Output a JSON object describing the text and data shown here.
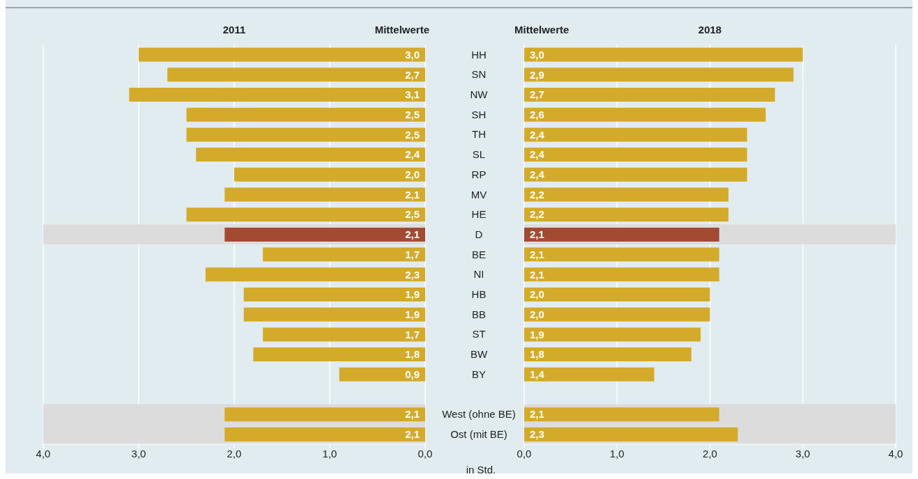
{
  "chart_data": [
    {
      "type": "bar",
      "orientation": "horizontal",
      "title": "2011",
      "xlabel": "in Std.",
      "annotations": [
        "Mittelwerte"
      ],
      "categories": [
        "HH",
        "SN",
        "NW",
        "SH",
        "TH",
        "SL",
        "RP",
        "MV",
        "HE",
        "D",
        "BE",
        "NI",
        "HB",
        "BB",
        "ST",
        "BW",
        "BY",
        null,
        "West (ohne BE)",
        "Ost (mit BE)"
      ],
      "values": [
        3.0,
        2.7,
        3.1,
        2.5,
        2.5,
        2.4,
        2.0,
        2.1,
        2.5,
        2.1,
        1.7,
        2.3,
        1.9,
        1.9,
        1.7,
        1.8,
        0.9,
        null,
        2.1,
        2.1
      ],
      "value_labels": [
        "3,0",
        "2,7",
        "3,1",
        "2,5",
        "2,5",
        "2,4",
        "2,0",
        "2,1",
        "2,5",
        "2,1",
        "1,7",
        "2,3",
        "1,9",
        "1,9",
        "1,7",
        "1,8",
        "0,9",
        null,
        "2,1",
        "2,1"
      ],
      "colors": [
        "#d3aa2a",
        "#d3aa2a",
        "#d3aa2a",
        "#d3aa2a",
        "#d3aa2a",
        "#d3aa2a",
        "#d3aa2a",
        "#d3aa2a",
        "#d3aa2a",
        "#a34a33",
        "#d3aa2a",
        "#d3aa2a",
        "#d3aa2a",
        "#d3aa2a",
        "#d3aa2a",
        "#d3aa2a",
        "#d3aa2a",
        "#d3aa2a",
        "#d3aa2a",
        "#d3aa2a"
      ],
      "xlim": [
        4,
        0
      ],
      "xticks": [
        {
          "value": 4,
          "label": "4,0"
        },
        {
          "value": 3,
          "label": "3,0"
        },
        {
          "value": 2,
          "label": "2,0"
        },
        {
          "value": 1,
          "label": "1,0"
        },
        {
          "value": 0,
          "label": "0,0"
        }
      ],
      "grid": "x",
      "legend": false,
      "tick_labels": "x",
      "bands": [
        {
          "axis": "y",
          "from": "D",
          "to": "D",
          "color": "#dcdcdc"
        },
        {
          "axis": "y",
          "from": "West (ohne BE)",
          "to": "Ost (mit BE)",
          "color": "#dcdcdc"
        }
      ]
    },
    {
      "type": "bar",
      "orientation": "horizontal",
      "title": "2018",
      "annotations": [
        "Mittelwerte"
      ],
      "categories": [
        "HH",
        "SN",
        "NW",
        "SH",
        "TH",
        "SL",
        "RP",
        "MV",
        "HE",
        "D",
        "BE",
        "NI",
        "HB",
        "BB",
        "ST",
        "BW",
        "BY",
        null,
        "West (ohne BE)",
        "Ost (mit BE)"
      ],
      "values": [
        3.0,
        2.9,
        2.7,
        2.6,
        2.4,
        2.4,
        2.4,
        2.2,
        2.2,
        2.1,
        2.1,
        2.1,
        2.0,
        2.0,
        1.9,
        1.8,
        1.4,
        null,
        2.1,
        2.3
      ],
      "value_labels": [
        "3,0",
        "2,9",
        "2,7",
        "2,6",
        "2,4",
        "2,4",
        "2,4",
        "2,2",
        "2,2",
        "2,1",
        "2,1",
        "2,1",
        "2,0",
        "2,0",
        "1,9",
        "1,8",
        "1,4",
        null,
        "2,1",
        "2,3"
      ],
      "colors": [
        "#d3aa2a",
        "#d3aa2a",
        "#d3aa2a",
        "#d3aa2a",
        "#d3aa2a",
        "#d3aa2a",
        "#d3aa2a",
        "#d3aa2a",
        "#d3aa2a",
        "#a34a33",
        "#d3aa2a",
        "#d3aa2a",
        "#d3aa2a",
        "#d3aa2a",
        "#d3aa2a",
        "#d3aa2a",
        "#d3aa2a",
        "#d3aa2a",
        "#d3aa2a",
        "#d3aa2a"
      ],
      "xlim": [
        0,
        4
      ],
      "xticks": [
        {
          "value": 0,
          "label": "0,0"
        },
        {
          "value": 1,
          "label": "1,0"
        },
        {
          "value": 2,
          "label": "2,0"
        },
        {
          "value": 3,
          "label": "3,0"
        },
        {
          "value": 4,
          "label": "4,0"
        }
      ],
      "grid": "x",
      "legend": false,
      "bands": [
        {
          "axis": "y",
          "from": "D",
          "to": "D",
          "color": "#dcdcdc"
        },
        {
          "axis": "y",
          "from": "West (ohne BE)",
          "to": "Ost (mit BE)",
          "color": "#dcdcdc"
        }
      ]
    }
  ]
}
